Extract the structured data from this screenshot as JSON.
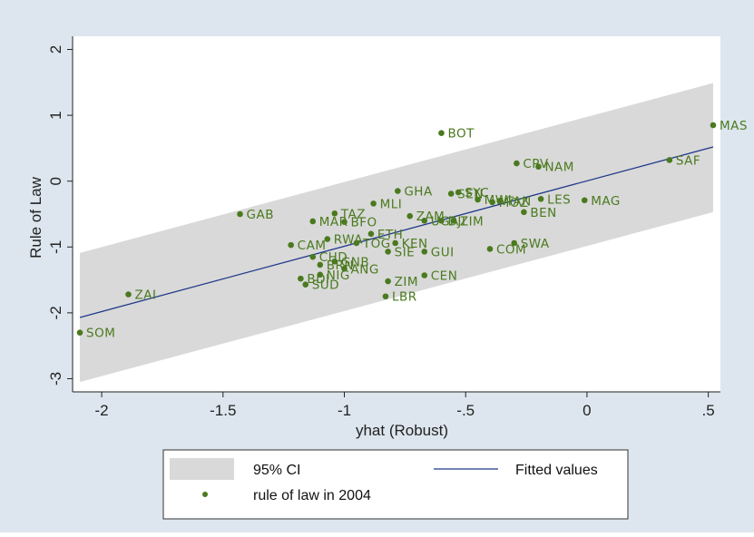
{
  "chart_data": {
    "type": "scatter",
    "xlabel": "yhat (Robust)",
    "ylabel": "Rule of Law",
    "xticks": [
      "-2",
      "-1.5",
      "-1",
      "-.5",
      "0",
      ".5"
    ],
    "xtick_values": [
      -2,
      -1.5,
      -1,
      -0.5,
      0,
      0.5
    ],
    "yticks": [
      "-3",
      "-2",
      "-1",
      "0",
      "1",
      "2"
    ],
    "ytick_values": [
      -3,
      -2,
      -1,
      0,
      1,
      2
    ],
    "xlim": [
      -2.12,
      0.55
    ],
    "ylim": [
      -3.2,
      2.2
    ],
    "grid": false,
    "legend_position": "bottom",
    "colors": {
      "outer_background": "#dde6ee",
      "plot_background": "#ffffff",
      "ci_band": "#d9d9d9",
      "fitted_line": "#1f3a8a",
      "points": "#4a7a1e"
    },
    "fitted_line": {
      "x": [
        -2.09,
        0.52
      ],
      "y": [
        -2.07,
        0.52
      ]
    },
    "confidence_band": {
      "x": [
        -2.09,
        0.52
      ],
      "lower": [
        -3.05,
        -0.47
      ],
      "upper": [
        -1.09,
        1.49
      ]
    },
    "points": [
      {
        "label": "MAS",
        "x": 0.52,
        "y": 0.85
      },
      {
        "label": "BOT",
        "x": -0.6,
        "y": 0.73
      },
      {
        "label": "SAF",
        "x": 0.34,
        "y": 0.32
      },
      {
        "label": "CPV",
        "x": -0.29,
        "y": 0.27
      },
      {
        "label": "NAM",
        "x": -0.2,
        "y": 0.22
      },
      {
        "label": "GHA",
        "x": -0.78,
        "y": -0.15
      },
      {
        "label": "SEN",
        "x": -0.56,
        "y": -0.19
      },
      {
        "label": "SYC",
        "x": -0.53,
        "y": -0.17
      },
      {
        "label": "LES",
        "x": -0.19,
        "y": -0.27
      },
      {
        "label": "MAG",
        "x": -0.01,
        "y": -0.29
      },
      {
        "label": "MWI",
        "x": -0.45,
        "y": -0.28
      },
      {
        "label": "MOZ",
        "x": -0.39,
        "y": -0.32
      },
      {
        "label": "TAN",
        "x": -0.36,
        "y": -0.3
      },
      {
        "label": "MLI",
        "x": -0.88,
        "y": -0.34
      },
      {
        "label": "BEN",
        "x": -0.26,
        "y": -0.47
      },
      {
        "label": "GAB",
        "x": -1.43,
        "y": -0.5
      },
      {
        "label": "TAZ",
        "x": -1.04,
        "y": -0.49
      },
      {
        "label": "MAR",
        "x": -1.13,
        "y": -0.61
      },
      {
        "label": "BFO",
        "x": -1.0,
        "y": -0.62
      },
      {
        "label": "ZAM",
        "x": -0.73,
        "y": -0.53
      },
      {
        "label": "UGA",
        "x": -0.67,
        "y": -0.6
      },
      {
        "label": "DJI",
        "x": -0.6,
        "y": -0.6
      },
      {
        "label": "ZIM2",
        "x": -0.55,
        "y": -0.6
      },
      {
        "label": "ETH",
        "x": -0.89,
        "y": -0.8
      },
      {
        "label": "CAM",
        "x": -1.22,
        "y": -0.97
      },
      {
        "label": "RWA",
        "x": -1.07,
        "y": -0.88
      },
      {
        "label": "TOG",
        "x": -0.95,
        "y": -0.94
      },
      {
        "label": "KEN",
        "x": -0.79,
        "y": -0.94
      },
      {
        "label": "SIE",
        "x": -0.82,
        "y": -1.07
      },
      {
        "label": "GUI",
        "x": -0.67,
        "y": -1.07
      },
      {
        "label": "COM",
        "x": -0.4,
        "y": -1.03
      },
      {
        "label": "SWA",
        "x": -0.3,
        "y": -0.94
      },
      {
        "label": "CHD",
        "x": -1.13,
        "y": -1.15
      },
      {
        "label": "BRN",
        "x": -1.1,
        "y": -1.27
      },
      {
        "label": "GNB",
        "x": -1.04,
        "y": -1.22
      },
      {
        "label": "ANG",
        "x": -1.0,
        "y": -1.33
      },
      {
        "label": "CEN",
        "x": -0.67,
        "y": -1.43
      },
      {
        "label": "ZIM",
        "x": -0.82,
        "y": -1.52
      },
      {
        "label": "LBR",
        "x": -0.83,
        "y": -1.75
      },
      {
        "label": "BDI",
        "x": -1.18,
        "y": -1.48
      },
      {
        "label": "NIG",
        "x": -1.1,
        "y": -1.42
      },
      {
        "label": "SUD",
        "x": -1.16,
        "y": -1.57
      },
      {
        "label": "ZAI",
        "x": -1.89,
        "y": -1.72
      },
      {
        "label": "SOM",
        "x": -2.09,
        "y": -2.3
      }
    ],
    "legend": [
      "95% CI",
      "Fitted values",
      "rule of law in 2004"
    ]
  }
}
